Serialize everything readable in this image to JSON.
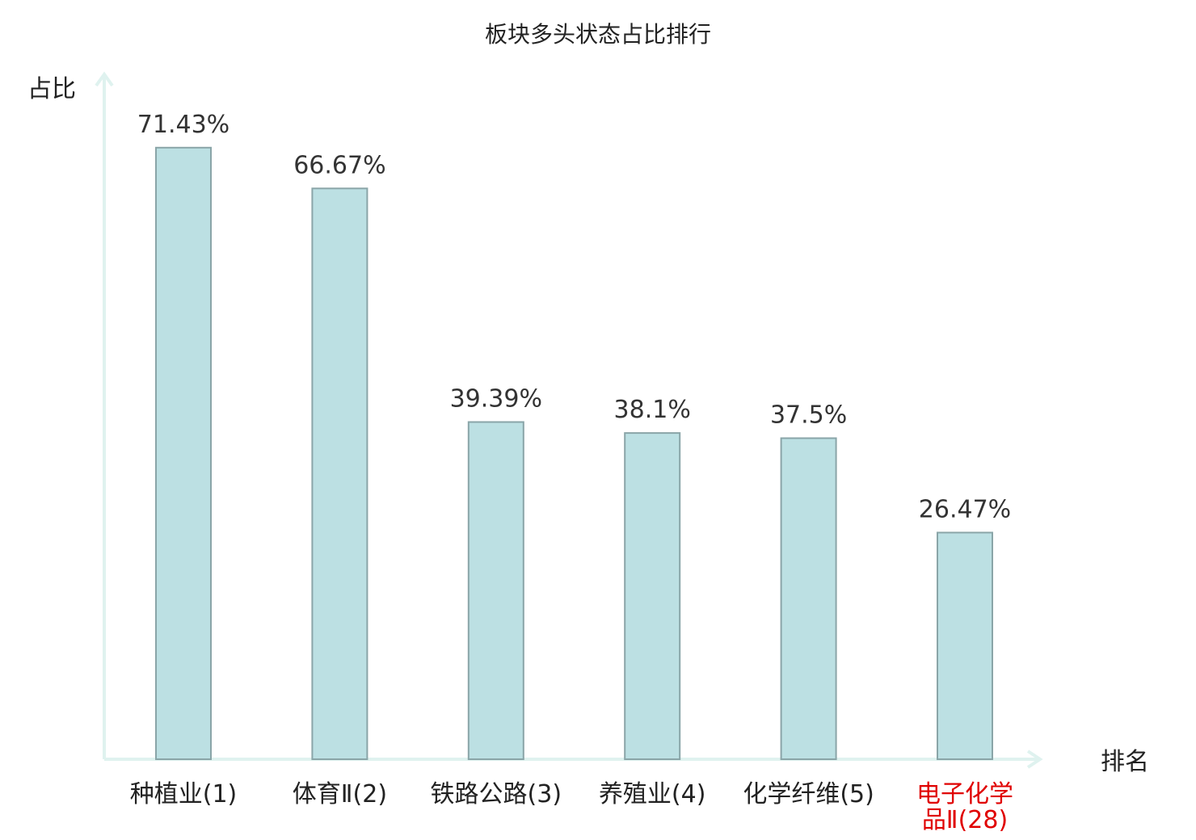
{
  "chart_data": {
    "type": "bar",
    "title": "板块多头状态占比排行",
    "ylabel": "占比",
    "xlabel": "排名",
    "categories": [
      {
        "line1": "种植业(1)",
        "line2": ""
      },
      {
        "line1": "体育Ⅱ(2)",
        "line2": ""
      },
      {
        "line1": "铁路公路(3)",
        "line2": ""
      },
      {
        "line1": "养殖业(4)",
        "line2": ""
      },
      {
        "line1": "化学纤维(5)",
        "line2": ""
      },
      {
        "line1": "电子化学",
        "line2": "品Ⅱ(28)"
      }
    ],
    "values": [
      71.43,
      66.67,
      39.39,
      38.1,
      37.5,
      26.47
    ],
    "value_labels": [
      "71.43%",
      "66.67%",
      "39.39%",
      "38.1%",
      "37.5%",
      "26.47%"
    ],
    "highlight_index": 5,
    "ylim": [
      0,
      80
    ],
    "grid": false,
    "colors": {
      "bar_fill": "#bce0e3",
      "bar_stroke": "#8aa5a8",
      "axis": "#dff2ef",
      "text": "#222222",
      "value_text": "#333333",
      "highlight": "#e00000"
    }
  }
}
